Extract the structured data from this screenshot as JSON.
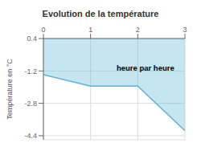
{
  "chart_data": {
    "type": "line",
    "title": "Evolution de la température",
    "y_label": "Température en °C",
    "x": [
      0,
      1.0,
      2.0,
      3.0
    ],
    "values": [
      -1.38,
      -1.95,
      -1.95,
      -4.15
    ],
    "color": "#5ab4d4",
    "xlim": [
      0,
      3
    ],
    "xticks": [
      0,
      1,
      2,
      3
    ],
    "ylim": [
      -4.6,
      0.4
    ],
    "yticks": [
      0.4,
      -1.2,
      -2.8,
      -4.4
    ],
    "grid": true,
    "annotations": [
      {
        "text": "heure par heure",
        "x": 1.55,
        "y": -1.05
      }
    ]
  }
}
